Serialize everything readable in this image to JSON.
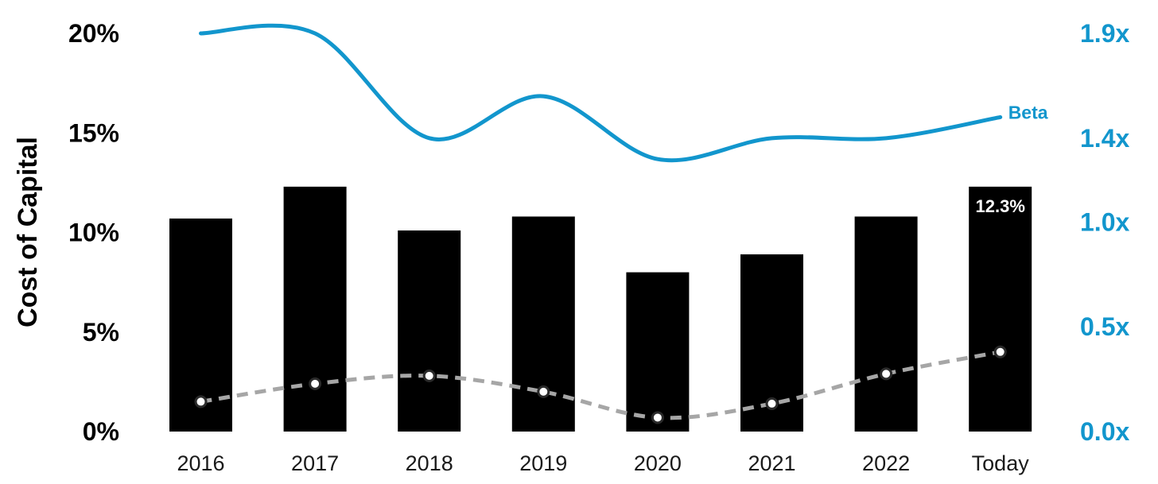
{
  "chart_data": {
    "type": "bar",
    "categories": [
      "2016",
      "2017",
      "2018",
      "2019",
      "2020",
      "2021",
      "2022",
      "Today"
    ],
    "series": [
      {
        "name": "",
        "kind": "bar",
        "axis": "left",
        "color": "#000000",
        "values": [
          10.7,
          12.3,
          10.1,
          10.8,
          8.0,
          8.9,
          10.8,
          12.3
        ]
      },
      {
        "name": "",
        "kind": "line",
        "style": "dashed",
        "axis": "left",
        "color": "#a6a6a6",
        "values": [
          1.5,
          2.4,
          2.8,
          2.0,
          0.7,
          1.4,
          2.9,
          4.0
        ]
      },
      {
        "name": "Beta",
        "kind": "line",
        "axis": "right",
        "color": "#1296cd",
        "values": [
          1.9,
          1.9,
          1.4,
          1.6,
          1.3,
          1.4,
          1.4,
          1.5
        ]
      }
    ],
    "ylabel": "Cost of Capital",
    "ylim": [
      0,
      20
    ],
    "yticks": [
      "0%",
      "5%",
      "10%",
      "15%",
      "20%"
    ],
    "y2lim": [
      0.0,
      1.9
    ],
    "y2ticks": [
      "0.0x",
      "0.5x",
      "1.0x",
      "1.4x",
      "1.9x"
    ],
    "data_labels": [
      {
        "category": "Today",
        "text": "12.3%"
      }
    ],
    "grid": false
  }
}
